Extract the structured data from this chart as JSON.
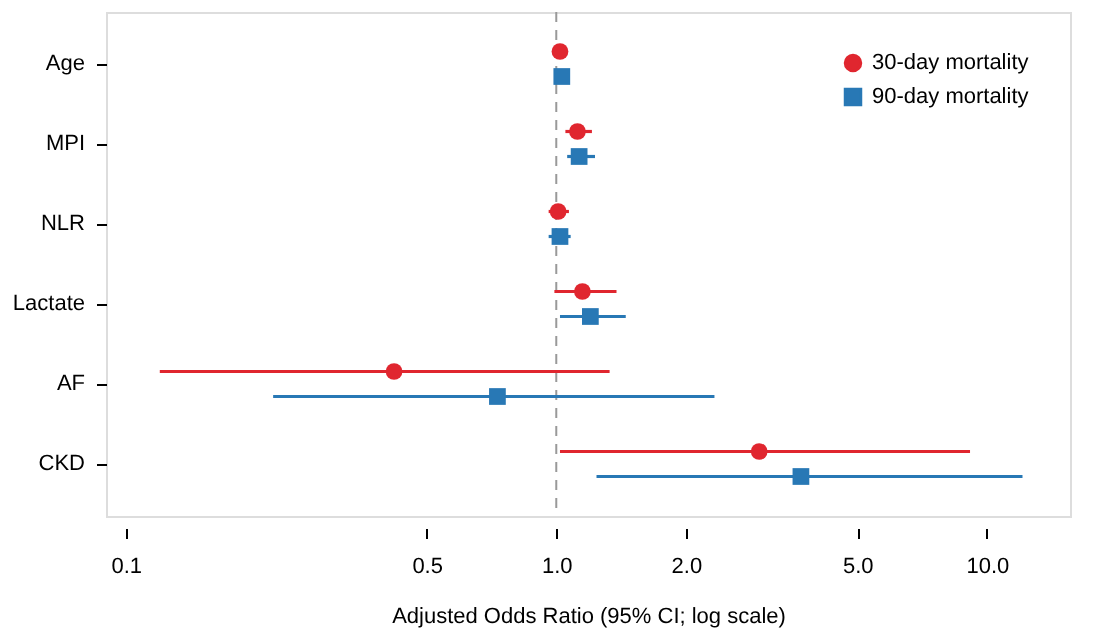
{
  "chart_data": {
    "type": "scatter",
    "orientation": "horizontal",
    "categories": [
      "Age",
      "MPI",
      "NLR",
      "Lactate",
      "AF",
      "CKD"
    ],
    "series": [
      {
        "name": "30-day mortality",
        "color": "#e0262f",
        "marker": "circle",
        "values": [
          1.02,
          1.12,
          1.01,
          1.15,
          0.42,
          2.96
        ],
        "errors": [
          [
            0.99,
            1.04
          ],
          [
            1.05,
            1.21
          ],
          [
            0.96,
            1.07
          ],
          [
            0.99,
            1.38
          ],
          [
            0.12,
            1.33
          ],
          [
            1.02,
            9.14
          ]
        ]
      },
      {
        "name": "90-day mortality",
        "color": "#2878b5",
        "marker": "square",
        "values": [
          1.03,
          1.13,
          1.02,
          1.2,
          0.73,
          3.7
        ],
        "errors": [
          [
            0.99,
            1.06
          ],
          [
            1.06,
            1.23
          ],
          [
            0.96,
            1.08
          ],
          [
            1.02,
            1.45
          ],
          [
            0.22,
            2.33
          ],
          [
            1.24,
            12.1
          ]
        ]
      }
    ],
    "xlabel": "Adjusted Odds Ratio (95% CI; log scale)",
    "xlim": [
      0.09,
      15.6
    ],
    "log": "x",
    "xticks": [
      0.1,
      0.5,
      {
        "value": 1,
        "label": "1.0"
      },
      {
        "value": 2,
        "label": "2.0"
      },
      {
        "value": 5,
        "label": "5.0"
      },
      {
        "value": 10,
        "label": "10.0"
      }
    ],
    "ref_lines": [
      {
        "axis": "x",
        "value": 1,
        "color": "#999999",
        "line_style": "dashed"
      }
    ],
    "legend": "top right",
    "grid": false
  }
}
